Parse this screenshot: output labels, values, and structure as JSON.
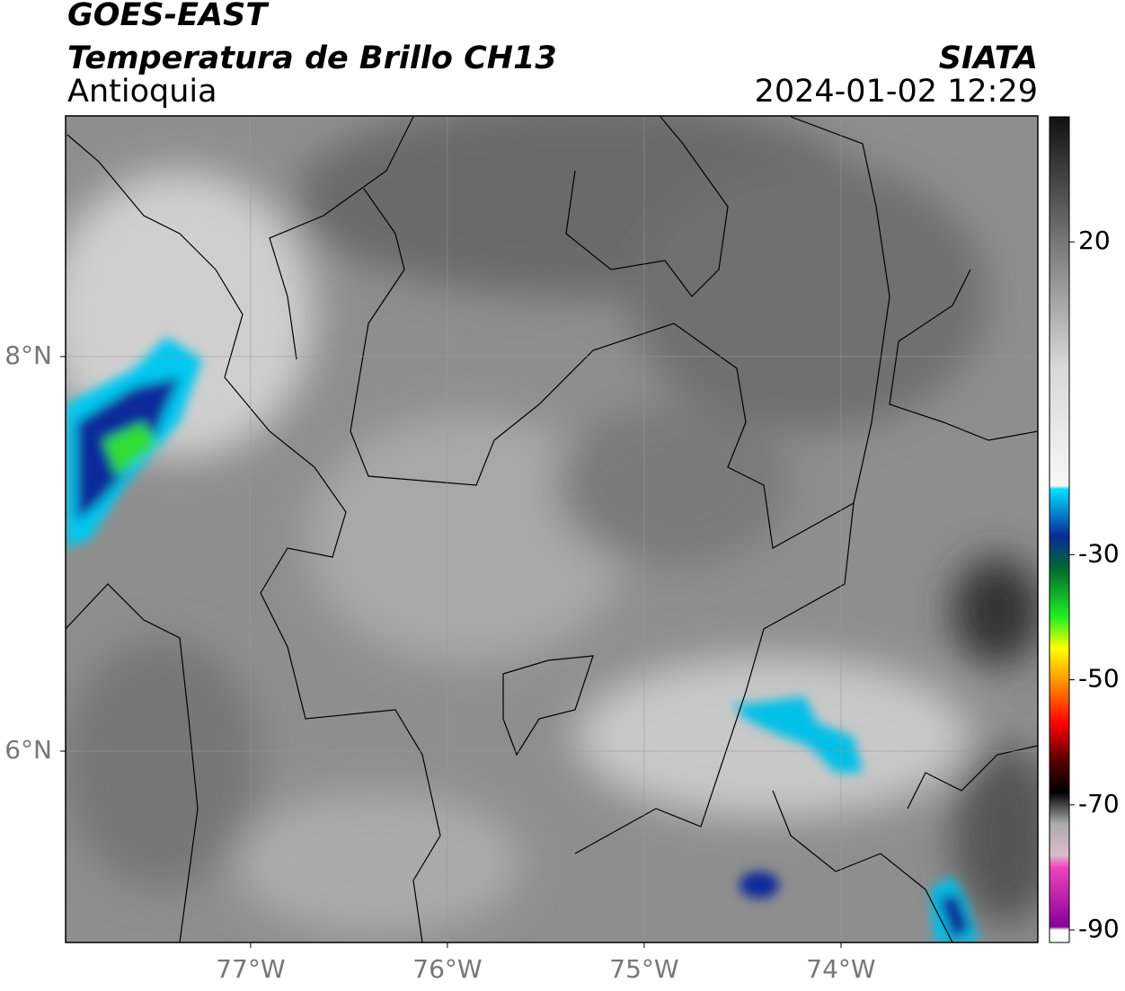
{
  "header": {
    "title": "GOES-EAST",
    "subtitle": "Temperatura de Brillo CH13",
    "region": "Antioquia",
    "source": "SIATA",
    "timestamp": "2024-01-02 12:29"
  },
  "map": {
    "xlim": [
      -77.94,
      -73.0
    ],
    "ylim": [
      5.03,
      9.22
    ],
    "xticks": [
      {
        "value": -77,
        "label": "77°W"
      },
      {
        "value": -76,
        "label": "76°W"
      },
      {
        "value": -75,
        "label": "75°W"
      },
      {
        "value": -74,
        "label": "74°W"
      }
    ],
    "yticks": [
      {
        "value": 8,
        "label": "8°N"
      },
      {
        "value": 6,
        "label": "6°N"
      }
    ],
    "grid": true
  },
  "colorbar": {
    "clim": [
      -92,
      40
    ],
    "ticks": [
      20,
      -30,
      -50,
      -70,
      -90
    ],
    "colormap": [
      {
        "value": 40,
        "color": "#111111"
      },
      {
        "value": 20,
        "color": "#777777"
      },
      {
        "value": 0,
        "color": "#d8d8d8"
      },
      {
        "value": -19,
        "color": "#f7f7f7"
      },
      {
        "value": -19.5,
        "color": "#00e0ff"
      },
      {
        "value": -27,
        "color": "#0a2a9a"
      },
      {
        "value": -32,
        "color": "#006633"
      },
      {
        "value": -40,
        "color": "#22ee22"
      },
      {
        "value": -45,
        "color": "#ffff00"
      },
      {
        "value": -50,
        "color": "#ff9900"
      },
      {
        "value": -57,
        "color": "#ff0000"
      },
      {
        "value": -63,
        "color": "#550000"
      },
      {
        "value": -68,
        "color": "#000000"
      },
      {
        "value": -73,
        "color": "#aaaaaa"
      },
      {
        "value": -78,
        "color": "#ddbbcc"
      },
      {
        "value": -80,
        "color": "#ee44bb"
      },
      {
        "value": -89.5,
        "color": "#880099"
      },
      {
        "value": -90,
        "color": "#ffffff"
      }
    ]
  }
}
